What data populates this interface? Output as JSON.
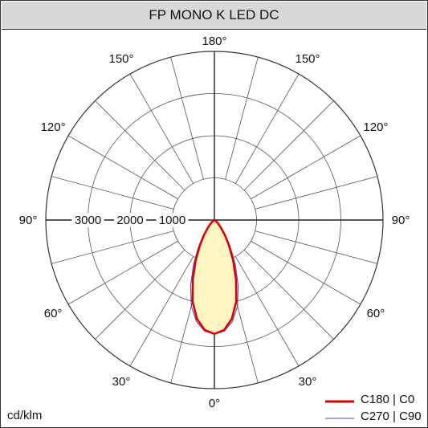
{
  "window": {
    "title": "FP MONO K LED DC"
  },
  "chart_data": {
    "type": "polar",
    "title": "FP MONO K LED DC",
    "unit": "cd/klm",
    "radial_max": 4000,
    "radial_ticks": [
      1000,
      2000,
      3000
    ],
    "angle_labels": [
      "0°",
      "30°",
      "60°",
      "90°",
      "120°",
      "150°",
      "180°"
    ],
    "series": [
      {
        "name": "C180 | C0",
        "color": "#dd0000",
        "fill": "#fff5c2",
        "points": [
          [
            0,
            2700
          ],
          [
            5,
            2620
          ],
          [
            10,
            2380
          ],
          [
            15,
            2000
          ],
          [
            20,
            1500
          ],
          [
            25,
            1050
          ],
          [
            30,
            690
          ],
          [
            35,
            430
          ],
          [
            40,
            250
          ],
          [
            45,
            140
          ],
          [
            50,
            80
          ],
          [
            55,
            40
          ],
          [
            60,
            20
          ],
          [
            70,
            5
          ],
          [
            80,
            0
          ],
          [
            90,
            0
          ]
        ]
      },
      {
        "name": "C270 | C90",
        "color": "#4444cc",
        "points": [
          [
            0,
            2700
          ],
          [
            5,
            2650
          ],
          [
            10,
            2450
          ],
          [
            15,
            2120
          ],
          [
            20,
            1650
          ],
          [
            25,
            1180
          ],
          [
            30,
            780
          ],
          [
            35,
            480
          ],
          [
            40,
            280
          ],
          [
            45,
            160
          ],
          [
            50,
            90
          ],
          [
            55,
            45
          ],
          [
            60,
            22
          ],
          [
            70,
            5
          ],
          [
            80,
            0
          ],
          [
            90,
            0
          ]
        ]
      }
    ]
  }
}
